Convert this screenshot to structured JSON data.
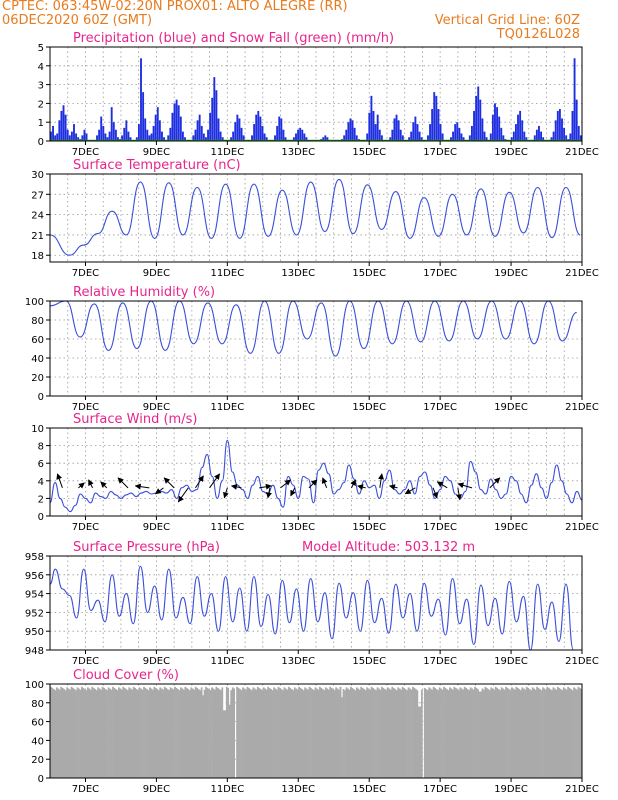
{
  "header": {
    "line1_left": "CPTEC:   063:45W-02:20N   PROX01: ALTO ALEGRE (RR)",
    "line2_left": "06DEC2020 60Z (GMT)",
    "line2_right": "Vertical Grid Line: 60Z",
    "line3_right": "TQ0126L028"
  },
  "colors": {
    "header": "#e87b1e",
    "title": "#e8248c",
    "precip": "#1f2fe0",
    "snow": "#1aa01a",
    "line": "#3a4fd8",
    "cloud": "#aaaaaa",
    "arrow": "#000000"
  },
  "chart_data": [
    {
      "type": "bar",
      "title": "Precipitation (blue) and Snow Fall (green) (mm/h)",
      "x_tick_labels": [
        "7DEC",
        "9DEC",
        "11DEC",
        "13DEC",
        "15DEC",
        "17DEC",
        "19DEC",
        "21DEC"
      ],
      "ylim": [
        0,
        5
      ],
      "y_ticks": [
        0,
        1,
        2,
        3,
        4,
        5
      ],
      "series": [
        {
          "values": [
            0.5,
            0.8,
            0.3,
            0.4,
            1.1,
            1.6,
            1.9,
            1.4,
            0.6,
            0.3,
            0.5,
            0.9,
            0.4,
            0.2,
            0.1,
            0.3,
            0.6,
            0.4,
            0,
            0,
            0,
            0,
            0.3,
            0.6,
            1.3,
            0.8,
            0.4,
            0.2,
            0.5,
            1.8,
            1.0,
            0.6,
            0.2,
            0.1,
            0.3,
            0.7,
            1.1,
            0.5,
            0.2,
            0,
            0,
            0.2,
            0.9,
            4.4,
            2.6,
            1.2,
            0.6,
            0.3,
            0.4,
            0.8,
            1.4,
            1.8,
            1.1,
            0.5,
            0.2,
            0,
            0.3,
            0.7,
            1.5,
            2.0,
            2.2,
            1.9,
            1.3,
            0.5,
            0.2,
            0,
            0,
            0,
            0.3,
            0.6,
            1.1,
            1.4,
            0.8,
            0.4,
            0.2,
            0.6,
            1.5,
            2.3,
            3.4,
            2.7,
            1.2,
            0.5,
            0.2,
            0,
            0,
            0,
            0.2,
            0.5,
            1.0,
            1.4,
            1.2,
            0.7,
            0.3,
            0,
            0,
            0,
            0.3,
            0.9,
            1.4,
            1.6,
            1.3,
            0.8,
            0.4,
            0.2,
            0,
            0,
            0,
            0.3,
            0.8,
            1.3,
            1.2,
            0.6,
            0.2,
            0,
            0,
            0,
            0.2,
            0.4,
            0.6,
            0.7,
            0.6,
            0.4,
            0.2,
            0,
            0,
            0,
            0,
            0,
            0,
            0.1,
            0.2,
            0.3,
            0.2,
            0,
            0,
            0,
            0,
            0,
            0,
            0.1,
            0.3,
            0.6,
            1.0,
            1.2,
            1.1,
            0.7,
            0.3,
            0.1,
            0,
            0,
            0,
            0.4,
            1.5,
            2.4,
            1.6,
            0.9,
            1.4,
            0.6,
            0.3,
            0,
            0,
            0,
            0.2,
            0.6,
            1.2,
            1.4,
            1.1,
            0.6,
            0.3,
            0,
            0,
            0.2,
            0.5,
            1.0,
            1.3,
            0.9,
            0.5,
            0.2,
            0,
            0,
            0.3,
            0.9,
            1.7,
            2.6,
            2.4,
            1.7,
            0.9,
            0.4,
            0,
            0,
            0,
            0.2,
            0.5,
            0.9,
            1.0,
            0.7,
            0.4,
            0.2,
            0,
            0,
            0.3,
            0.8,
            1.6,
            2.4,
            2.9,
            2.2,
            1.2,
            0.5,
            0.2,
            0,
            0.4,
            1.4,
            2.0,
            1.8,
            1.3,
            0.7,
            0.3,
            0.1,
            0,
            0,
            0.2,
            0.5,
            0.9,
            1.4,
            1.6,
            1.1,
            0.5,
            0.2,
            0,
            0,
            0,
            0.3,
            0.6,
            0.8,
            0.5,
            0.2,
            0,
            0,
            0,
            0.2,
            0.5,
            1.1,
            1.6,
            1.7,
            1.2,
            0.7,
            0.3,
            0.1,
            0.4,
            1.6,
            4.4,
            2.2,
            0.8,
            0.3
          ]
        }
      ]
    },
    {
      "type": "line",
      "title": "Surface Temperature (nC)",
      "x_tick_labels": [
        "7DEC",
        "9DEC",
        "11DEC",
        "13DEC",
        "15DEC",
        "17DEC",
        "19DEC",
        "21DEC"
      ],
      "ylim": [
        17,
        30
      ],
      "y_ticks": [
        18,
        21,
        24,
        27,
        30
      ],
      "series": [
        {
          "peaks": [
            19.5,
            24.5,
            28.8,
            28.7,
            28.0,
            28.5,
            28.5,
            27.6,
            28.8,
            29.2,
            28.4,
            27.4,
            26.5,
            27.0,
            27.8,
            27.3,
            28.0,
            28.0,
            28.4
          ],
          "troughs": [
            18.0,
            21.2,
            21.0,
            20.5,
            21.0,
            20.5,
            20.5,
            20.8,
            21.0,
            21.5,
            21.2,
            21.8,
            20.5,
            20.8,
            21.0,
            20.8,
            21.3,
            20.6,
            21.0
          ]
        }
      ]
    },
    {
      "type": "line",
      "title": "Relative Humidity (%)",
      "x_tick_labels": [
        "7DEC",
        "9DEC",
        "11DEC",
        "13DEC",
        "15DEC",
        "17DEC",
        "19DEC",
        "21DEC"
      ],
      "ylim": [
        0,
        100
      ],
      "y_ticks": [
        0,
        20,
        40,
        60,
        80,
        100
      ],
      "series": [
        {
          "troughs": [
            62,
            48,
            50,
            48,
            55,
            55,
            45,
            45,
            60,
            42,
            50,
            55,
            57,
            58,
            60,
            60,
            55,
            58,
            55
          ],
          "peaks": [
            100,
            97,
            98,
            100,
            100,
            98,
            96,
            100,
            100,
            98,
            100,
            100,
            100,
            100,
            100,
            100,
            100,
            100,
            88
          ]
        }
      ]
    },
    {
      "type": "line",
      "title": "Surface Wind (m/s)",
      "x_tick_labels": [
        "7DEC",
        "9DEC",
        "11DEC",
        "13DEC",
        "15DEC",
        "17DEC",
        "19DEC",
        "21DEC"
      ],
      "ylim": [
        0,
        10
      ],
      "y_ticks": [
        0,
        2,
        4,
        6,
        8,
        10
      ],
      "series": [
        {
          "values": [
            1.5,
            3.8,
            2.0,
            1.0,
            0.5,
            1.2,
            2.5,
            2.0,
            1.5,
            2.6,
            2.2,
            2.0,
            2.8,
            2.4,
            2.0,
            2.4,
            2.6,
            2.2,
            2.6,
            2.8,
            2.5,
            2.6,
            2.8,
            2.6,
            3.0,
            2.0,
            3.2,
            3.5,
            2.8,
            3.0,
            5.5,
            7.0,
            4.5,
            2.0,
            4.0,
            8.6,
            5.0,
            3.5,
            3.0,
            2.0,
            3.5,
            4.5,
            2.8,
            2.5,
            3.5,
            2.0,
            1.0,
            4.5,
            3.5,
            2.0,
            4.5,
            4.2,
            1.5,
            5.2,
            6.0,
            4.8,
            2.5,
            3.0,
            3.8,
            5.8,
            4.2,
            2.5,
            4.0,
            3.2,
            3.5,
            2.0,
            4.0,
            5.2,
            3.0,
            2.5,
            3.0,
            4.0,
            2.5,
            4.5,
            5.0,
            3.5,
            2.0,
            3.0,
            4.5,
            4.0,
            2.5,
            2.0,
            2.8,
            6.2,
            5.0,
            3.0,
            2.5,
            4.2,
            3.0,
            2.0,
            2.5,
            4.5,
            4.0,
            2.5,
            1.5,
            3.5,
            4.8,
            3.2,
            2.0,
            3.8,
            5.8,
            4.0,
            2.5,
            1.5,
            2.8,
            1.8
          ]
        },
        {
          "arrows": [
            {
              "x": 0.35,
              "dx": -5,
              "dy": -14
            },
            {
              "x": 0.8,
              "dx": 6,
              "dy": -5
            },
            {
              "x": 1.2,
              "dx": -4,
              "dy": -8
            },
            {
              "x": 1.6,
              "dx": -6,
              "dy": -6
            },
            {
              "x": 2.2,
              "dx": -10,
              "dy": -10
            },
            {
              "x": 2.8,
              "dx": -14,
              "dy": -2
            },
            {
              "x": 3.2,
              "dx": -8,
              "dy": 6
            },
            {
              "x": 3.5,
              "dx": -10,
              "dy": -10
            },
            {
              "x": 3.9,
              "dx": -10,
              "dy": 14
            },
            {
              "x": 4.1,
              "dx": 8,
              "dy": -12
            },
            {
              "x": 4.5,
              "dx": 10,
              "dy": -14
            },
            {
              "x": 5.0,
              "dx": -3,
              "dy": 10
            },
            {
              "x": 5.4,
              "dx": -10,
              "dy": -2
            },
            {
              "x": 5.9,
              "dx": 12,
              "dy": -2
            },
            {
              "x": 6.2,
              "dx": -2,
              "dy": 10
            },
            {
              "x": 6.5,
              "dx": 10,
              "dy": -8
            },
            {
              "x": 6.9,
              "dx": -4,
              "dy": 8
            },
            {
              "x": 7.3,
              "dx": 8,
              "dy": -8
            },
            {
              "x": 7.8,
              "dx": -4,
              "dy": -10
            },
            {
              "x": 8.5,
              "dx": 4,
              "dy": -8
            },
            {
              "x": 8.9,
              "dx": -8,
              "dy": -2
            },
            {
              "x": 9.3,
              "dx": 2,
              "dy": -14
            },
            {
              "x": 9.8,
              "dx": -8,
              "dy": -2
            },
            {
              "x": 10.3,
              "dx": -10,
              "dy": 6
            },
            {
              "x": 10.8,
              "dx": 4,
              "dy": 10
            },
            {
              "x": 11.2,
              "dx": -10,
              "dy": -6
            },
            {
              "x": 11.5,
              "dx": 2,
              "dy": 12
            },
            {
              "x": 11.9,
              "dx": -14,
              "dy": -4
            },
            {
              "x": 12.4,
              "dx": 10,
              "dy": -10
            }
          ]
        }
      ]
    },
    {
      "type": "line",
      "title": "Surface Pressure (hPa)",
      "annotation": "Model Altitude: 503.132 m",
      "x_tick_labels": [
        "7DEC",
        "9DEC",
        "11DEC",
        "13DEC",
        "15DEC",
        "17DEC",
        "19DEC",
        "21DEC"
      ],
      "ylim": [
        948,
        958
      ],
      "y_ticks": [
        948,
        950,
        952,
        954,
        956,
        958
      ],
      "series": [
        {
          "half_peaks": [
            956.6,
            953.8,
            956.6,
            953.3,
            956.0,
            954.0,
            956.9,
            954.8,
            956.6,
            953.6,
            955.8,
            954.0,
            955.8,
            954.6,
            955.8,
            953.9,
            955.4,
            954.5,
            955.6,
            954.1,
            955.1,
            954.1,
            955.4,
            953.5,
            955.0,
            954.0,
            955.1,
            953.4,
            955.6,
            953.4,
            954.9,
            953.5,
            955.3,
            953.7,
            955.0,
            953.1,
            955.0
          ],
          "half_troughs": [
            954.5,
            951.4,
            952.2,
            951.0,
            951.6,
            950.8,
            952.0,
            951.2,
            951.4,
            950.8,
            951.6,
            950.0,
            951.0,
            950.0,
            950.5,
            949.7,
            950.9,
            950.0,
            951.0,
            949.2,
            951.4,
            950.0,
            950.9,
            949.8,
            951.4,
            950.0,
            951.6,
            949.6,
            950.8,
            948.6,
            950.6,
            949.7,
            951.0,
            948.0,
            950.2,
            948.9,
            948.1
          ]
        }
      ]
    },
    {
      "type": "bar",
      "title": "Cloud Cover (%)",
      "x_tick_labels": [
        "7DEC",
        "9DEC",
        "11DEC",
        "13DEC",
        "15DEC",
        "17DEC",
        "19DEC",
        "21DEC"
      ],
      "ylim": [
        0,
        100
      ],
      "y_ticks": [
        0,
        20,
        40,
        60,
        80,
        100
      ],
      "series": [
        {
          "base": 97,
          "low_points": [
            {
              "x": 4.3,
              "v": 88
            },
            {
              "x": 4.9,
              "v": 72
            },
            {
              "x": 5.05,
              "v": 78
            },
            {
              "x": 8.2,
              "v": 86
            },
            {
              "x": 10.4,
              "v": 76
            },
            {
              "x": 12.1,
              "v": 92
            }
          ],
          "gaps": [
            5.2,
            10.5
          ]
        }
      ]
    }
  ]
}
